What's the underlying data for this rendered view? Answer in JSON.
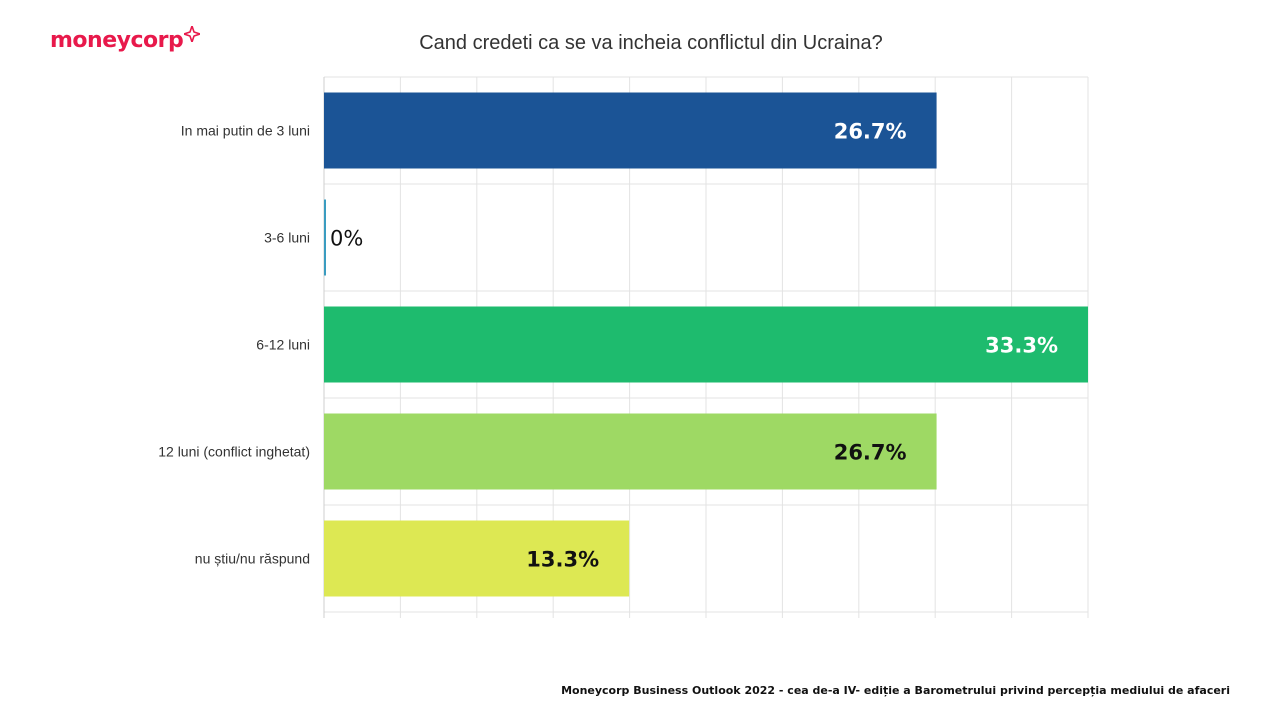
{
  "brand": {
    "logo_text": "moneycorp",
    "logo_color": "#e8194b"
  },
  "chart_data": {
    "type": "bar",
    "orientation": "horizontal",
    "title": "Cand credeti ca se va incheia conflictul din Ucraina?",
    "xlabel": "",
    "ylabel": "",
    "xlim": [
      0,
      33.3
    ],
    "grid": true,
    "categories": [
      "In mai putin de 3 luni",
      "3-6 luni",
      "6-12 luni",
      "12 luni (conflict inghetat)",
      "nu știu/nu răspund"
    ],
    "values": [
      26.7,
      0,
      33.3,
      26.7,
      13.3
    ],
    "value_labels": [
      "26.7%",
      "0%",
      "33.3%",
      "26.7%",
      "13.3%"
    ],
    "colors": [
      "#1b5496",
      "#3a9cc0",
      "#1ebb6e",
      "#9ed964",
      "#dde853"
    ],
    "label_colors": [
      "#ffffff",
      "#111111",
      "#ffffff",
      "#111111",
      "#111111"
    ]
  },
  "footer": {
    "text": "Moneycorp Business Outlook 2022 - cea de-a IV- ediție a Barometrului privind percepția mediului de afaceri"
  }
}
